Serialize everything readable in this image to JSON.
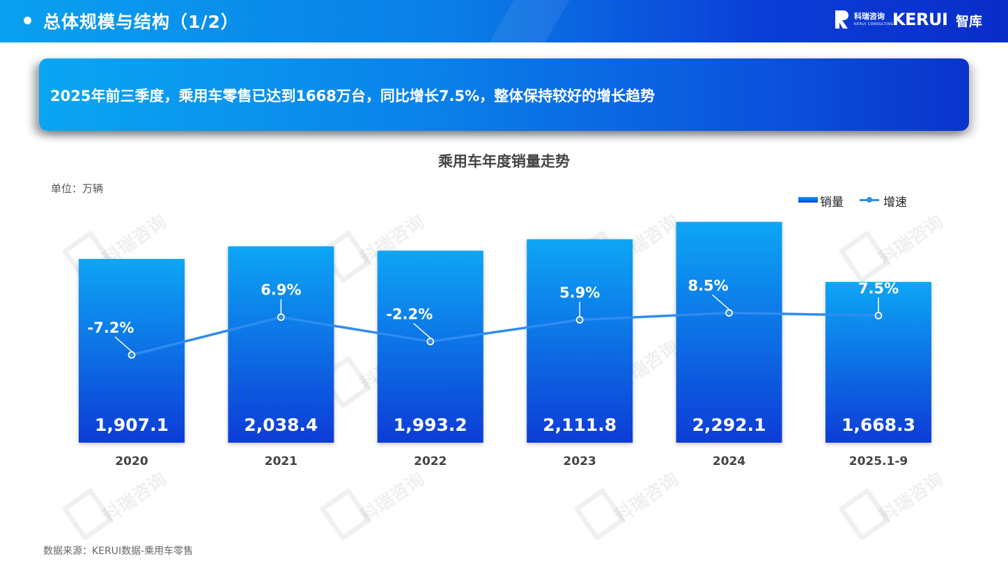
{
  "header": {
    "title": "总体规模与结构（1/2）",
    "logo_cn": "科瑞咨询",
    "logo_en_small": "KERUI CONSULTING",
    "logo_brand": "KERUI",
    "logo_suffix": "智库"
  },
  "banner": {
    "text": "2025年前三季度，乘用车零售已达到1668万台，同比增长7.5%，整体保持较好的增长趋势"
  },
  "unit": "单位：万辆",
  "source": "数据来源：KERUI数据-乘用车零售",
  "watermark_text": "科瑞咨询",
  "colors": {
    "bar_top": "#07a6f5",
    "bar_bottom": "#0b3cd6",
    "line": "#2f8cf0",
    "header_start": "#0aa0f0",
    "header_end": "#0a2cc8"
  },
  "chart_data": {
    "type": "bar",
    "title": "乘用车年度销量走势",
    "categories": [
      "2020",
      "2021",
      "2022",
      "2023",
      "2024",
      "2025.1-9"
    ],
    "series": [
      {
        "name": "销量",
        "type": "bar",
        "values": [
          1907.1,
          2038.4,
          1993.2,
          2111.8,
          2292.1,
          1668.3
        ],
        "labels": [
          "1,907.1",
          "2,038.4",
          "1,993.2",
          "2,111.8",
          "2,292.1",
          "1,668.3"
        ]
      },
      {
        "name": "增速",
        "type": "line",
        "values": [
          -7.2,
          6.9,
          -2.2,
          5.9,
          8.5,
          7.5
        ],
        "labels": [
          "-7.2%",
          "6.9%",
          "-2.2%",
          "5.9%",
          "8.5%",
          "7.5%"
        ]
      }
    ],
    "bar_ylim": [
      0,
      2500
    ],
    "line_ylim": [
      -40,
      50
    ],
    "legend": "top-right",
    "grid": false
  }
}
